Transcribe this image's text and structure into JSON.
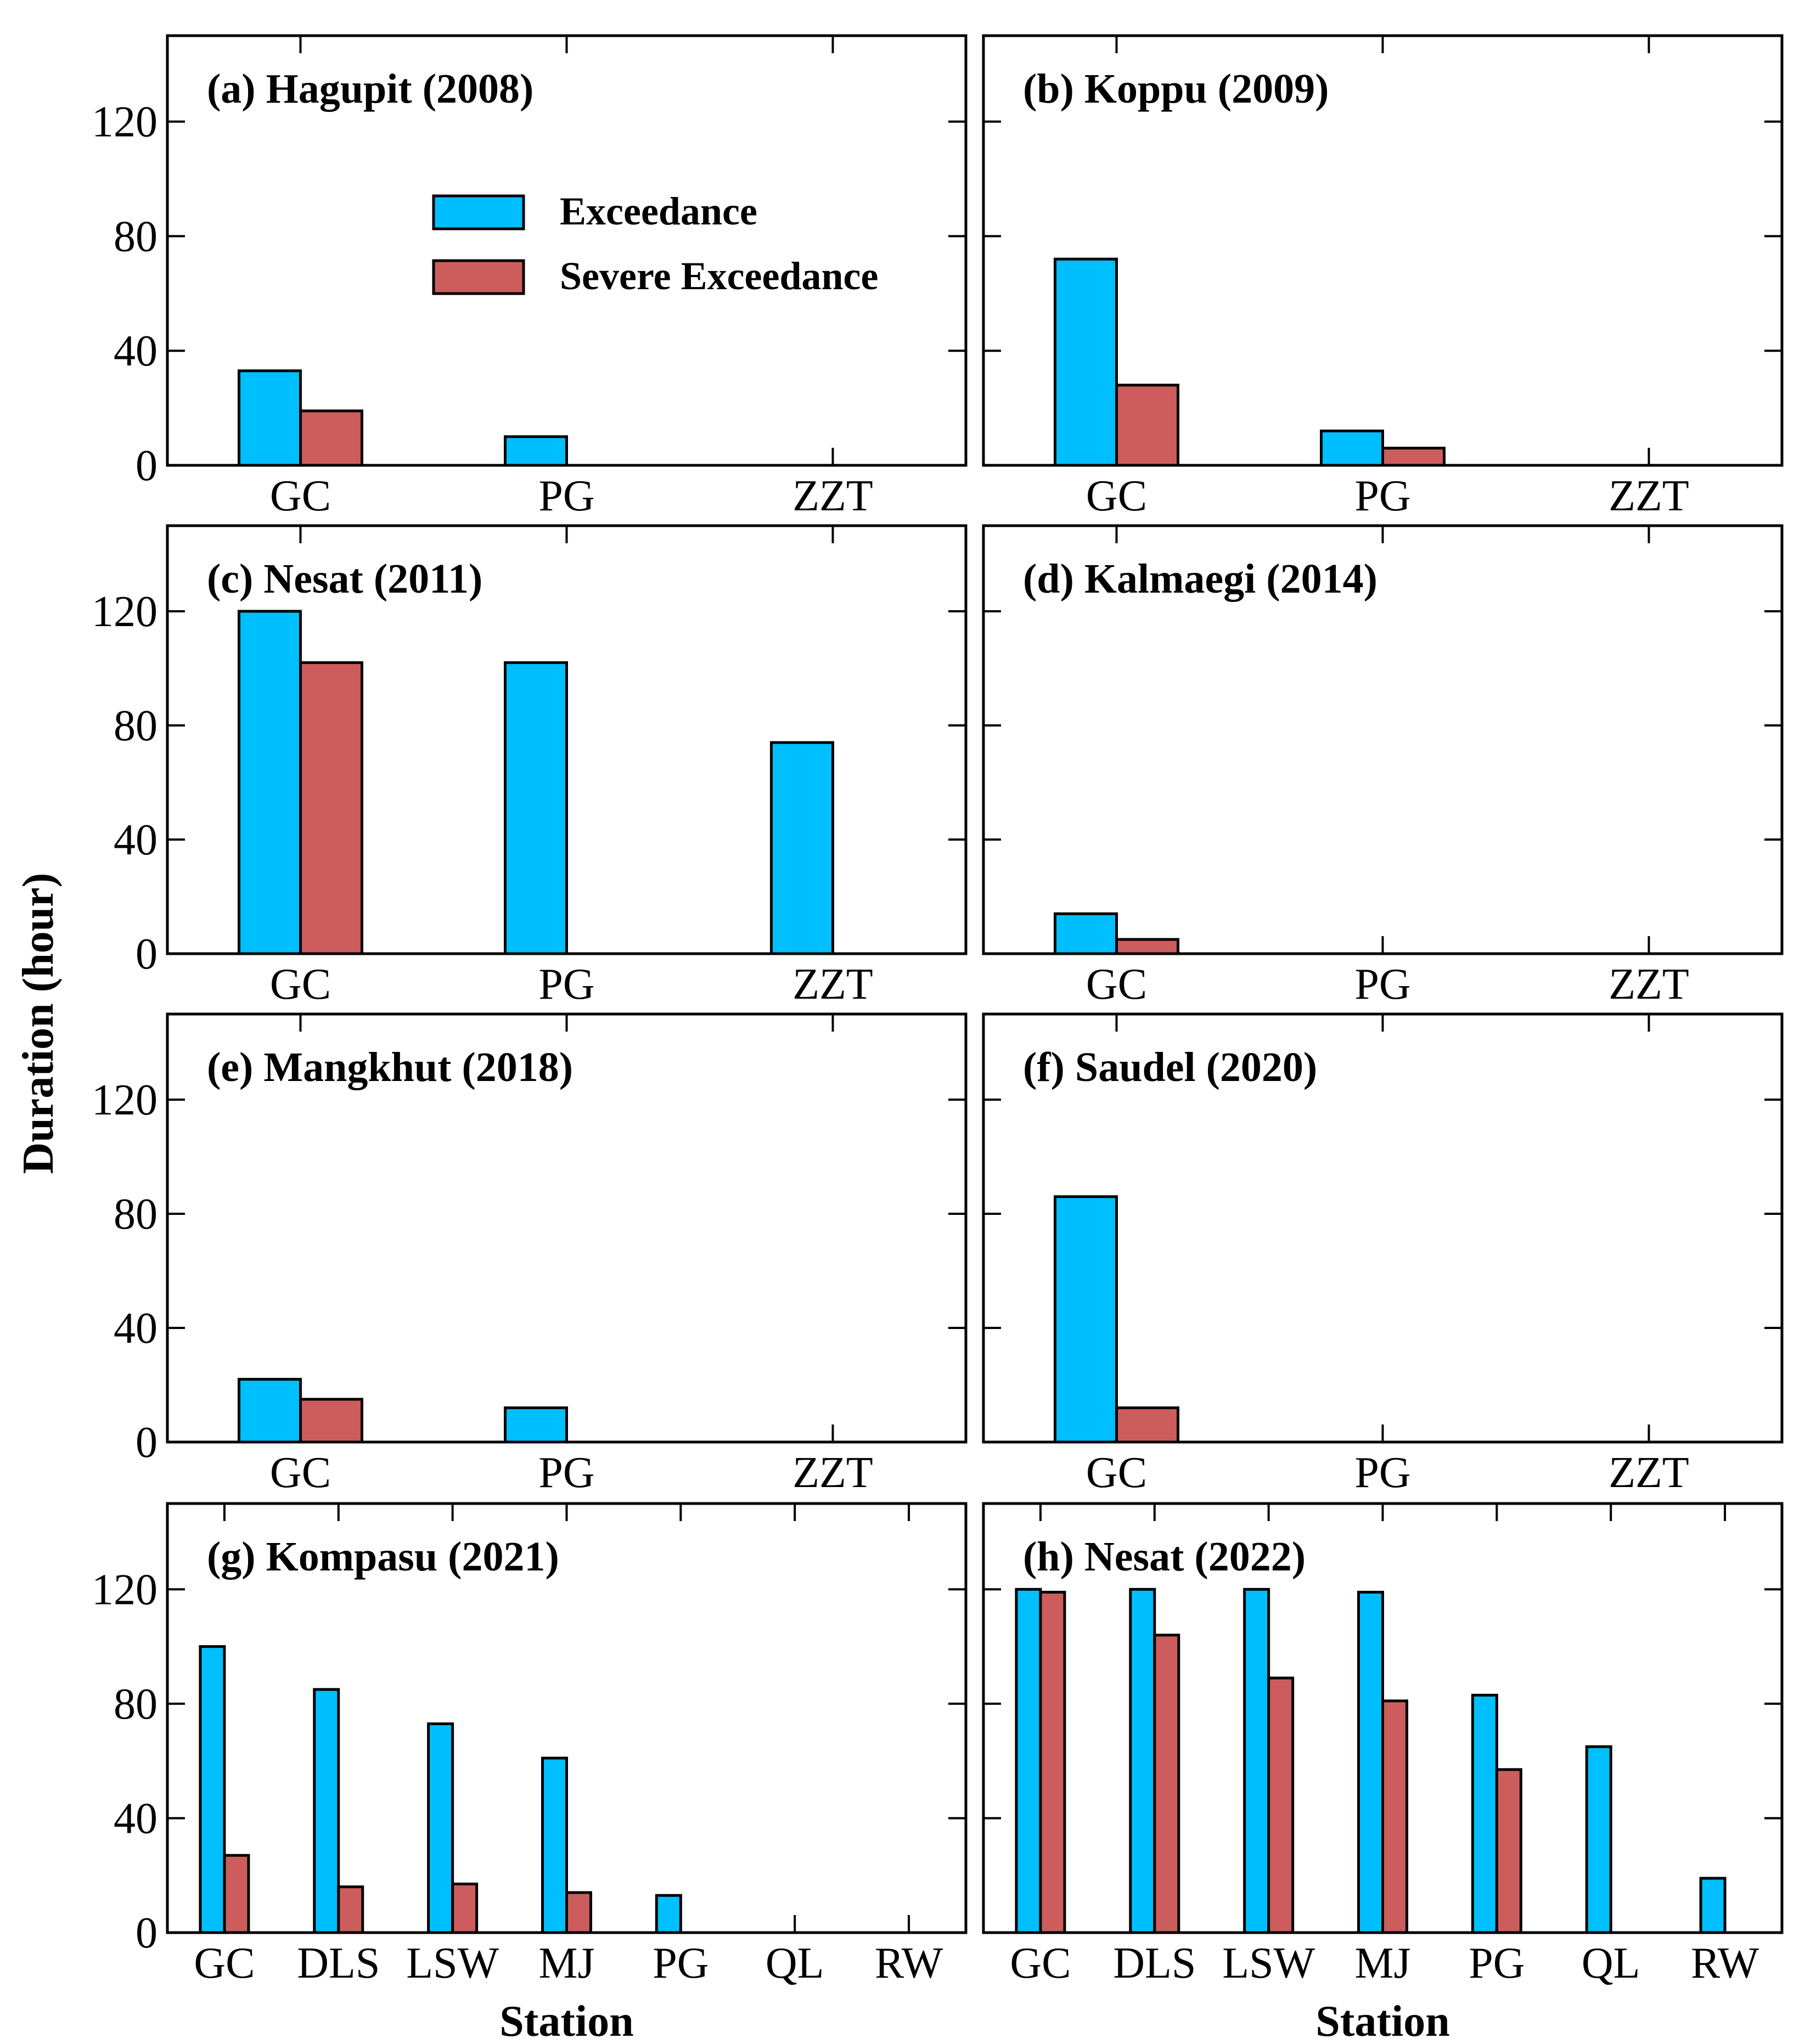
{
  "figure": {
    "ylabel": "Duration (hour)",
    "xlabel": "Station",
    "legend": [
      {
        "label": "Exceedance",
        "color": "#00BFFF"
      },
      {
        "label": "Severe Exceedance",
        "color": "#CD5C5C"
      }
    ]
  },
  "chart_data": [
    {
      "type": "bar",
      "title": "(a) Hagupit (2008)",
      "categories": [
        "GC",
        "PG",
        "ZZT"
      ],
      "ylim": [
        0,
        150
      ],
      "yticks": [
        0,
        40,
        80,
        120
      ],
      "series": [
        {
          "name": "Exceedance",
          "values": [
            33,
            10,
            0
          ]
        },
        {
          "name": "Severe Exceedance",
          "values": [
            19,
            0,
            0
          ]
        }
      ]
    },
    {
      "type": "bar",
      "title": "(b) Koppu (2009)",
      "categories": [
        "GC",
        "PG",
        "ZZT"
      ],
      "ylim": [
        0,
        150
      ],
      "yticks": [
        0,
        40,
        80,
        120
      ],
      "series": [
        {
          "name": "Exceedance",
          "values": [
            72,
            12,
            0
          ]
        },
        {
          "name": "Severe Exceedance",
          "values": [
            28,
            6,
            0
          ]
        }
      ]
    },
    {
      "type": "bar",
      "title": "(c) Nesat (2011)",
      "categories": [
        "GC",
        "PG",
        "ZZT"
      ],
      "ylim": [
        0,
        150
      ],
      "yticks": [
        0,
        40,
        80,
        120
      ],
      "series": [
        {
          "name": "Exceedance",
          "values": [
            120,
            102,
            74
          ]
        },
        {
          "name": "Severe Exceedance",
          "values": [
            102,
            0,
            0
          ]
        }
      ]
    },
    {
      "type": "bar",
      "title": "(d) Kalmaegi (2014)",
      "categories": [
        "GC",
        "PG",
        "ZZT"
      ],
      "ylim": [
        0,
        150
      ],
      "yticks": [
        0,
        40,
        80,
        120
      ],
      "series": [
        {
          "name": "Exceedance",
          "values": [
            14,
            0,
            0
          ]
        },
        {
          "name": "Severe Exceedance",
          "values": [
            5,
            0,
            0
          ]
        }
      ]
    },
    {
      "type": "bar",
      "title": "(e) Mangkhut (2018)",
      "categories": [
        "GC",
        "PG",
        "ZZT"
      ],
      "ylim": [
        0,
        150
      ],
      "yticks": [
        0,
        40,
        80,
        120
      ],
      "series": [
        {
          "name": "Exceedance",
          "values": [
            22,
            12,
            0
          ]
        },
        {
          "name": "Severe Exceedance",
          "values": [
            15,
            0,
            0
          ]
        }
      ]
    },
    {
      "type": "bar",
      "title": "(f) Saudel (2020)",
      "categories": [
        "GC",
        "PG",
        "ZZT"
      ],
      "ylim": [
        0,
        150
      ],
      "yticks": [
        0,
        40,
        80,
        120
      ],
      "series": [
        {
          "name": "Exceedance",
          "values": [
            86,
            0,
            0
          ]
        },
        {
          "name": "Severe Exceedance",
          "values": [
            12,
            0,
            0
          ]
        }
      ]
    },
    {
      "type": "bar",
      "title": "(g) Kompasu (2021)",
      "categories": [
        "GC",
        "DLS",
        "LSW",
        "MJ",
        "PG",
        "QL",
        "RW"
      ],
      "ylim": [
        0,
        150
      ],
      "yticks": [
        0,
        40,
        80,
        120
      ],
      "xlabel": "Station",
      "series": [
        {
          "name": "Exceedance",
          "values": [
            100,
            85,
            73,
            61,
            13,
            0,
            0
          ]
        },
        {
          "name": "Severe Exceedance",
          "values": [
            27,
            16,
            17,
            14,
            0,
            0,
            0
          ]
        }
      ]
    },
    {
      "type": "bar",
      "title": "(h) Nesat (2022)",
      "categories": [
        "GC",
        "DLS",
        "LSW",
        "MJ",
        "PG",
        "QL",
        "RW"
      ],
      "ylim": [
        0,
        150
      ],
      "yticks": [
        0,
        40,
        80,
        120
      ],
      "xlabel": "Station",
      "series": [
        {
          "name": "Exceedance",
          "values": [
            120,
            120,
            120,
            119,
            83,
            65,
            19
          ]
        },
        {
          "name": "Severe Exceedance",
          "values": [
            119,
            104,
            89,
            81,
            57,
            0,
            0
          ]
        }
      ]
    }
  ]
}
